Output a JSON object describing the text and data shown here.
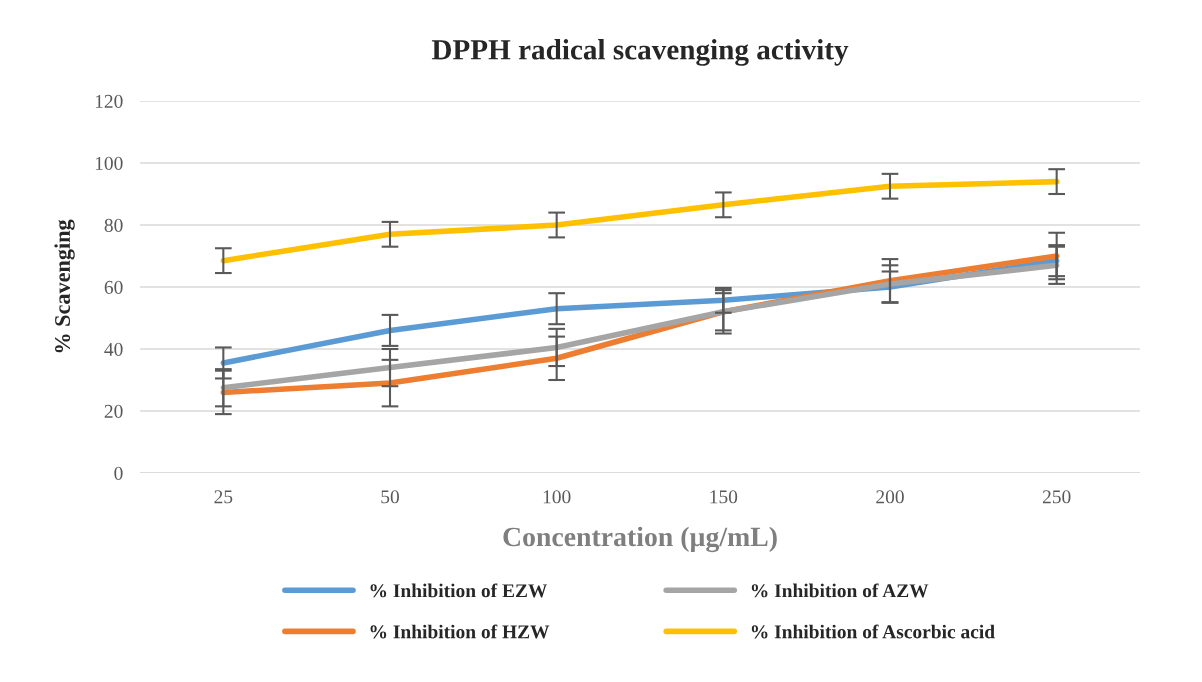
{
  "chart_data": {
    "type": "line",
    "title": "DPPH radical scavenging activity",
    "xlabel": "Concentration (µg/mL)",
    "ylabel": "% Scavenging",
    "categories": [
      "25",
      "50",
      "100",
      "150",
      "200",
      "250"
    ],
    "series": [
      {
        "name": "% Inhibition of EZW",
        "color": "#5b9bd5",
        "values": [
          35.5,
          46,
          53,
          55.7,
          60,
          68.5
        ],
        "errors": [
          5,
          5,
          5,
          4,
          5,
          5
        ]
      },
      {
        "name": "% Inhibition of HZW",
        "color": "#ed7d31",
        "values": [
          26,
          29,
          37,
          52,
          62,
          70
        ],
        "errors": [
          7,
          7.5,
          7,
          7,
          7,
          7.5
        ]
      },
      {
        "name": "% Inhibition of AZW",
        "color": "#a5a5a5",
        "values": [
          27.5,
          34,
          40.5,
          52,
          61,
          67
        ],
        "errors": [
          6,
          6,
          6,
          6,
          6,
          6
        ]
      },
      {
        "name": "% Inhibition of Ascorbic acid",
        "color": "#ffc000",
        "values": [
          68.5,
          77,
          80,
          86.5,
          92.5,
          94
        ],
        "errors": [
          4,
          4,
          4,
          4,
          4,
          4
        ]
      }
    ],
    "ylim": [
      0,
      120
    ],
    "yticks": [
      0,
      20,
      40,
      60,
      80,
      100,
      120
    ],
    "grid": "y",
    "legend": "bottom",
    "marker": "none",
    "line_style": "solid"
  }
}
